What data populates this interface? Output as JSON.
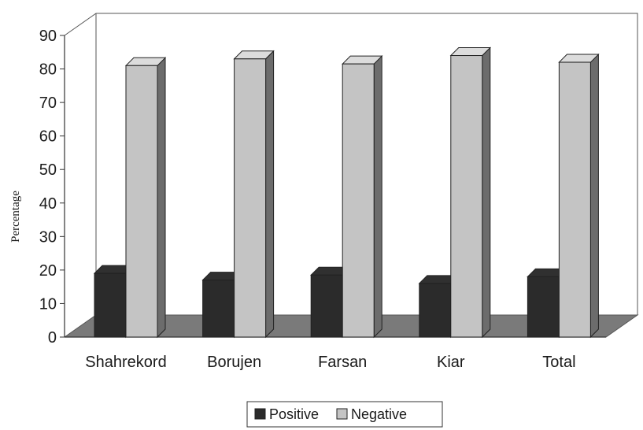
{
  "chart_data": {
    "type": "bar",
    "ylabel": "Percentage",
    "ylim": [
      0,
      90
    ],
    "yticks": [
      "0",
      "10",
      "20",
      "30",
      "40",
      "50",
      "60",
      "70",
      "80",
      "90"
    ],
    "categories": [
      "Shahrekord",
      "Borujen",
      "Farsan",
      "Kiar",
      "Total"
    ],
    "series": [
      {
        "name": "Positive",
        "values": [
          19,
          17,
          18.5,
          16,
          18
        ],
        "color": "#2b2b2b"
      },
      {
        "name": "Negative",
        "values": [
          81,
          83,
          81.5,
          84,
          82
        ],
        "color": "#c4c4c4"
      }
    ],
    "legend_position": "bottom",
    "grid": false
  }
}
